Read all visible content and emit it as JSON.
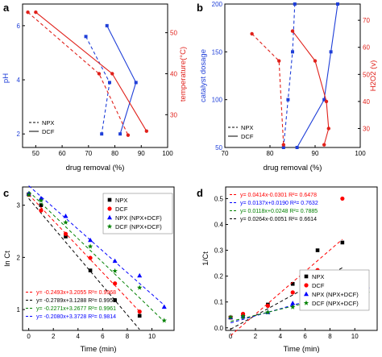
{
  "panels": [
    {
      "letter": "a",
      "xlabel": "drug removal (%)",
      "ylabel_left": "pH",
      "ylabel_right": "temperature(°C)",
      "xlim": [
        45,
        100
      ],
      "xticks": [
        "50",
        "60",
        "70",
        "80",
        "90",
        "100"
      ],
      "ylim_left": [
        1.5,
        6.8
      ],
      "yticks_left": [
        "2",
        "4",
        "6"
      ],
      "ylim_right": [
        22,
        57
      ],
      "yticks_right": [
        "30",
        "40",
        "50"
      ],
      "legend": [
        {
          "label": "NPX",
          "dash": true
        },
        {
          "label": "DCF",
          "dash": false
        }
      ]
    },
    {
      "letter": "b",
      "xlabel": "drug removal (%)",
      "ylabel_left": "catalyst dosage",
      "ylabel_right": "H2O2 (v)",
      "xlim": [
        70,
        100
      ],
      "xticks": [
        "70",
        "80",
        "90",
        "100"
      ],
      "ylim_left": [
        50,
        200
      ],
      "yticks_left": [
        "50",
        "100",
        "150",
        "200"
      ],
      "ylim_right": [
        23,
        76
      ],
      "yticks_right": [
        "30",
        "40",
        "50",
        "60",
        "70"
      ],
      "legend": [
        {
          "label": "NPX",
          "dash": true
        },
        {
          "label": "DCF",
          "dash": false
        }
      ]
    },
    {
      "letter": "c",
      "xlabel": "Time (min)",
      "ylabel": "ln Ct",
      "xlim": [
        -0.5,
        11.8
      ],
      "xticks": [
        "0",
        "2",
        "4",
        "6",
        "8",
        "10"
      ],
      "ylim": [
        0.6,
        3.35
      ],
      "yticks": [
        "1",
        "2",
        "3"
      ],
      "legend": [
        {
          "label": "NPX",
          "color": "#000000",
          "marker": "square"
        },
        {
          "label": "DCF",
          "color": "#ff0000",
          "marker": "circle"
        },
        {
          "label": "NPX (NPX+DCF)",
          "color": "#0000ff",
          "marker": "triangle"
        },
        {
          "label": "DCF (NPX+DCF)",
          "color": "#008000",
          "marker": "star"
        }
      ],
      "equations": [
        {
          "text": "y= -0.2493x+3.2055 R²= 0.9968",
          "color": "#ff0000"
        },
        {
          "text": "y= -0.2789x+3.1288 R²= 0.9955",
          "color": "#000000"
        },
        {
          "text": "y= -0.2271x+3.2677 R²= 0.9961",
          "color": "#008000"
        },
        {
          "text": "y= -0.2080x+3.3728 R²= 0.9814",
          "color": "#0000ff"
        }
      ]
    },
    {
      "letter": "d",
      "xlabel": "Time (min)",
      "ylabel": "1/Ct",
      "xlim": [
        -0.4,
        11.8
      ],
      "xticks": [
        "0",
        "2",
        "4",
        "6",
        "8",
        "10"
      ],
      "ylim": [
        -0.01,
        0.545
      ],
      "yticks": [
        "0.0",
        "0.1",
        "0.2",
        "0.3",
        "0.4",
        "0.5"
      ],
      "legend": [
        {
          "label": "NPX",
          "color": "#000000",
          "marker": "square"
        },
        {
          "label": "DCF",
          "color": "#ff0000",
          "marker": "circle"
        },
        {
          "label": "NPX (NPX+DCF)",
          "color": "#0000ff",
          "marker": "triangle"
        },
        {
          "label": "DCF (NPX+DCF)",
          "color": "#008000",
          "marker": "star"
        }
      ],
      "equations": [
        {
          "text": "y= 0.0414x-0.0301 R²= 0.6478",
          "color": "#ff0000"
        },
        {
          "text": "y= 0.0137x+0.0190 R²= 0.7632",
          "color": "#0000ff"
        },
        {
          "text": "y= 0.0118x+0.0248 R²= 0.7885",
          "color": "#008000"
        },
        {
          "text": "y= 0.0264x-0.0051 R²= 0.6614",
          "color": "#000000"
        }
      ]
    }
  ],
  "colors": {
    "blue": "#1f3fd8",
    "red": "#e0201a",
    "black": "#000000",
    "green": "#008000"
  },
  "chart_data": [
    {
      "panel": "a",
      "type": "line",
      "x_label": "drug removal (%)",
      "series": [
        {
          "name": "NPX",
          "axis": "pH",
          "color": "#1f3fd8",
          "dash": true,
          "points": [
            [
              69,
              5.6
            ],
            [
              78,
              3.9
            ],
            [
              75,
              2.0
            ]
          ]
        },
        {
          "name": "DCF",
          "axis": "pH",
          "color": "#1f3fd8",
          "dash": false,
          "points": [
            [
              77,
              6.0
            ],
            [
              88,
              3.9
            ],
            [
              82,
              2.0
            ]
          ]
        },
        {
          "name": "NPX",
          "axis": "temperature(°C)",
          "color": "#e0201a",
          "dash": true,
          "points": [
            [
              47,
              55
            ],
            [
              74,
              40
            ],
            [
              85,
              25
            ]
          ]
        },
        {
          "name": "DCF",
          "axis": "temperature(°C)",
          "color": "#e0201a",
          "dash": false,
          "points": [
            [
              50,
              55
            ],
            [
              79,
              40
            ],
            [
              92,
              26
            ]
          ]
        }
      ]
    },
    {
      "panel": "b",
      "type": "line",
      "x_label": "drug removal (%)",
      "series": [
        {
          "name": "NPX",
          "axis": "catalyst dosage",
          "color": "#1f3fd8",
          "dash": true,
          "points": [
            [
              83,
              50
            ],
            [
              84,
              100
            ],
            [
              85,
              150
            ],
            [
              85.5,
              200
            ]
          ]
        },
        {
          "name": "DCF",
          "axis": "catalyst dosage",
          "color": "#1f3fd8",
          "dash": false,
          "points": [
            [
              86,
              50
            ],
            [
              92,
              100
            ],
            [
              93.5,
              150
            ],
            [
              95,
              200
            ]
          ]
        },
        {
          "name": "NPX",
          "axis": "H2O2 (v)",
          "color": "#e0201a",
          "dash": true,
          "points": [
            [
              76,
              65
            ],
            [
              82,
              55
            ],
            [
              83,
              24
            ]
          ]
        },
        {
          "name": "DCF",
          "axis": "H2O2 (v)",
          "color": "#e0201a",
          "dash": false,
          "points": [
            [
              85,
              66
            ],
            [
              90,
              55
            ],
            [
              92.5,
              40
            ],
            [
              93,
              30
            ],
            [
              92,
              24
            ]
          ]
        }
      ]
    },
    {
      "panel": "c",
      "type": "scatter",
      "x_label": "Time (min)",
      "y_label": "ln Ct",
      "x": [
        0,
        1,
        3,
        5,
        7,
        9,
        11
      ],
      "series": [
        {
          "name": "NPX",
          "color": "#000000",
          "marker": "square",
          "fit": [
            -0.2789,
            3.1288
          ],
          "values": [
            3.21,
            3.0,
            2.4,
            1.75,
            1.18,
            0.88,
            null
          ]
        },
        {
          "name": "DCF",
          "color": "#ff0000",
          "marker": "circle",
          "fit": [
            -0.2493,
            3.2055
          ],
          "values": [
            3.2,
            2.9,
            2.45,
            1.99,
            1.5,
            0.96,
            null
          ]
        },
        {
          "name": "NPX (NPX+DCF)",
          "color": "#0000ff",
          "marker": "triangle",
          "fit": [
            -0.208,
            3.3728
          ],
          "values": [
            3.22,
            3.13,
            2.79,
            2.33,
            1.93,
            1.65,
            1.05
          ]
        },
        {
          "name": "DCF (NPX+DCF)",
          "color": "#008000",
          "marker": "star",
          "fit": [
            -0.2271,
            3.2677
          ],
          "values": [
            3.2,
            3.09,
            2.67,
            2.21,
            1.74,
            1.42,
            0.79
          ]
        }
      ]
    },
    {
      "panel": "d",
      "type": "scatter",
      "x_label": "Time (min)",
      "y_label": "1/Ct",
      "x": [
        0,
        1,
        3,
        5,
        7,
        9,
        11
      ],
      "series": [
        {
          "name": "NPX",
          "color": "#000000",
          "marker": "square",
          "fit": [
            0.0264,
            -0.0051
          ],
          "values": [
            0.04,
            0.05,
            0.09,
            0.17,
            0.3,
            0.33,
            null
          ]
        },
        {
          "name": "DCF",
          "color": "#ff0000",
          "marker": "circle",
          "fit": [
            0.0414,
            -0.0301
          ],
          "values": [
            0.04,
            0.054,
            0.085,
            0.137,
            0.223,
            0.5,
            null
          ]
        },
        {
          "name": "NPX (NPX+DCF)",
          "color": "#0000ff",
          "marker": "triangle",
          "fit": [
            0.0137,
            0.019
          ],
          "values": [
            0.04,
            0.044,
            0.06,
            0.095,
            0.14,
            0.16,
            0.16
          ]
        },
        {
          "name": "DCF (NPX+DCF)",
          "color": "#008000",
          "marker": "star",
          "fit": [
            0.0118,
            0.0248
          ],
          "values": [
            0.041,
            0.045,
            0.06,
            0.08,
            0.12,
            0.145,
            0.135
          ]
        }
      ]
    }
  ]
}
